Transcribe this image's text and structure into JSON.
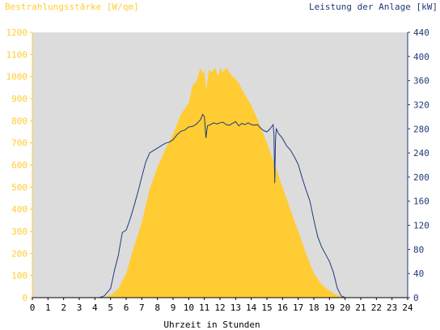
{
  "chart_data": {
    "type": "area",
    "title_left": "Bestrahlungsstärke [W/qm]",
    "title_right": "Leistung der Anlage [kW]",
    "xlabel": "Uhrzeit in Stunden",
    "x_ticks": [
      "0",
      "1",
      "2",
      "3",
      "4",
      "5",
      "6",
      "7",
      "8",
      "9",
      "10",
      "11",
      "12",
      "13",
      "14",
      "15",
      "16",
      "17",
      "18",
      "19",
      "20",
      "21",
      "22",
      "23",
      "24"
    ],
    "y_left_ticks": [
      "0",
      "100",
      "200",
      "300",
      "400",
      "500",
      "600",
      "700",
      "800",
      "900",
      "1000",
      "1100",
      "1200"
    ],
    "y_right_ticks": [
      "0",
      "40",
      "80",
      "120",
      "160",
      "200",
      "240",
      "280",
      "320",
      "360",
      "400",
      "440"
    ],
    "xlim": [
      0,
      24
    ],
    "ylim_left": [
      0,
      1200
    ],
    "ylim_right": [
      0,
      440
    ],
    "grid": false,
    "series": [
      {
        "axis": "left",
        "kind": "area",
        "color": "#ffcc33",
        "x": [
          4.5,
          5.0,
          5.5,
          6.0,
          6.5,
          7.0,
          7.5,
          8.0,
          8.5,
          9.0,
          9.5,
          10.0,
          10.25,
          10.5,
          10.75,
          10.9,
          11.0,
          11.1,
          11.3,
          11.5,
          11.7,
          11.9,
          12.0,
          12.2,
          12.4,
          12.6,
          12.8,
          13.0,
          13.2,
          13.5,
          14.0,
          14.5,
          15.0,
          15.5,
          16.0,
          16.5,
          17.0,
          17.5,
          18.0,
          18.5,
          19.0,
          19.5,
          20.0,
          20.3
        ],
        "y": [
          0,
          10,
          40,
          110,
          230,
          340,
          490,
          590,
          670,
          740,
          830,
          880,
          960,
          980,
          1040,
          1010,
          1030,
          940,
          1030,
          1020,
          1040,
          1000,
          1040,
          1020,
          1040,
          1020,
          1000,
          990,
          970,
          930,
          870,
          790,
          700,
          600,
          500,
          400,
          300,
          200,
          110,
          60,
          30,
          10,
          0,
          0
        ]
      },
      {
        "axis": "right",
        "kind": "line",
        "color": "#1f3a7a",
        "x": [
          4.3,
          4.6,
          5.0,
          5.25,
          5.5,
          5.75,
          6.0,
          6.25,
          6.5,
          6.75,
          7.0,
          7.25,
          7.5,
          7.75,
          8.0,
          8.25,
          8.5,
          8.75,
          9.0,
          9.25,
          9.5,
          9.75,
          10.0,
          10.25,
          10.5,
          10.75,
          10.9,
          11.0,
          11.1,
          11.2,
          11.4,
          11.6,
          11.8,
          12.0,
          12.2,
          12.4,
          12.6,
          12.8,
          13.0,
          13.2,
          13.4,
          13.6,
          13.8,
          14.0,
          14.2,
          14.4,
          14.6,
          14.8,
          15.0,
          15.2,
          15.4,
          15.45,
          15.5,
          15.55,
          15.6,
          15.75,
          16.0,
          16.25,
          16.5,
          16.75,
          17.0,
          17.25,
          17.5,
          17.75,
          18.0,
          18.25,
          18.5,
          18.75,
          19.0,
          19.25,
          19.5,
          19.75,
          20.0
        ],
        "y": [
          0,
          3,
          15,
          45,
          70,
          108,
          112,
          130,
          152,
          175,
          200,
          225,
          240,
          244,
          248,
          252,
          256,
          258,
          262,
          270,
          276,
          278,
          283,
          284,
          288,
          295,
          304,
          300,
          265,
          285,
          287,
          290,
          288,
          290,
          291,
          287,
          286,
          289,
          292,
          285,
          289,
          287,
          290,
          287,
          286,
          287,
          281,
          277,
          275,
          280,
          287,
          270,
          190,
          262,
          280,
          272,
          264,
          252,
          245,
          234,
          221,
          199,
          179,
          160,
          129,
          101,
          84,
          72,
          60,
          42,
          16,
          3,
          0
        ]
      }
    ]
  }
}
